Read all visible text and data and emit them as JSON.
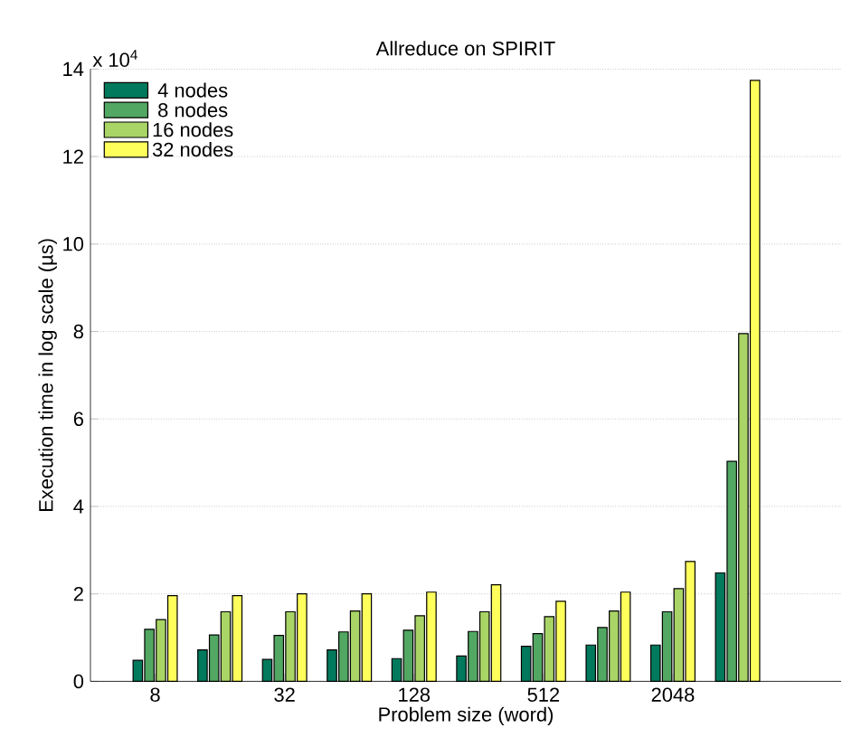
{
  "chart_data": {
    "type": "bar",
    "title": "Allreduce on SPIRIT",
    "xlabel": "Problem size (word)",
    "ylabel": "Execution time in log scale (µs)",
    "annotations": [
      "x 10$^{4}$"
    ],
    "categories": [
      "8",
      null,
      "32",
      null,
      "128",
      null,
      "512",
      null,
      "2048",
      null
    ],
    "series": [
      {
        "name": "4 nodes",
        "color": "#00795c",
        "values": [
          0.48,
          0.72,
          0.5,
          0.72,
          0.52,
          0.58,
          0.8,
          0.83,
          0.83,
          2.48
        ]
      },
      {
        "name": "8 nodes",
        "color": "#52a862",
        "values": [
          1.19,
          1.06,
          1.05,
          1.13,
          1.17,
          1.14,
          1.09,
          1.23,
          1.59,
          5.03
        ]
      },
      {
        "name": "16 nodes",
        "color": "#a9d466",
        "values": [
          1.41,
          1.59,
          1.59,
          1.61,
          1.5,
          1.59,
          1.48,
          1.61,
          2.12,
          7.95
        ]
      },
      {
        "name": "32 nodes",
        "color": "#ffff5c",
        "values": [
          1.96,
          1.96,
          2.0,
          2.0,
          2.04,
          2.21,
          1.83,
          2.04,
          2.74,
          13.74
        ]
      }
    ],
    "ylim": [
      0,
      14
    ],
    "yticks": [
      0,
      2,
      4,
      6,
      8,
      10,
      12,
      14
    ],
    "grid": "y",
    "legend": "top left"
  }
}
